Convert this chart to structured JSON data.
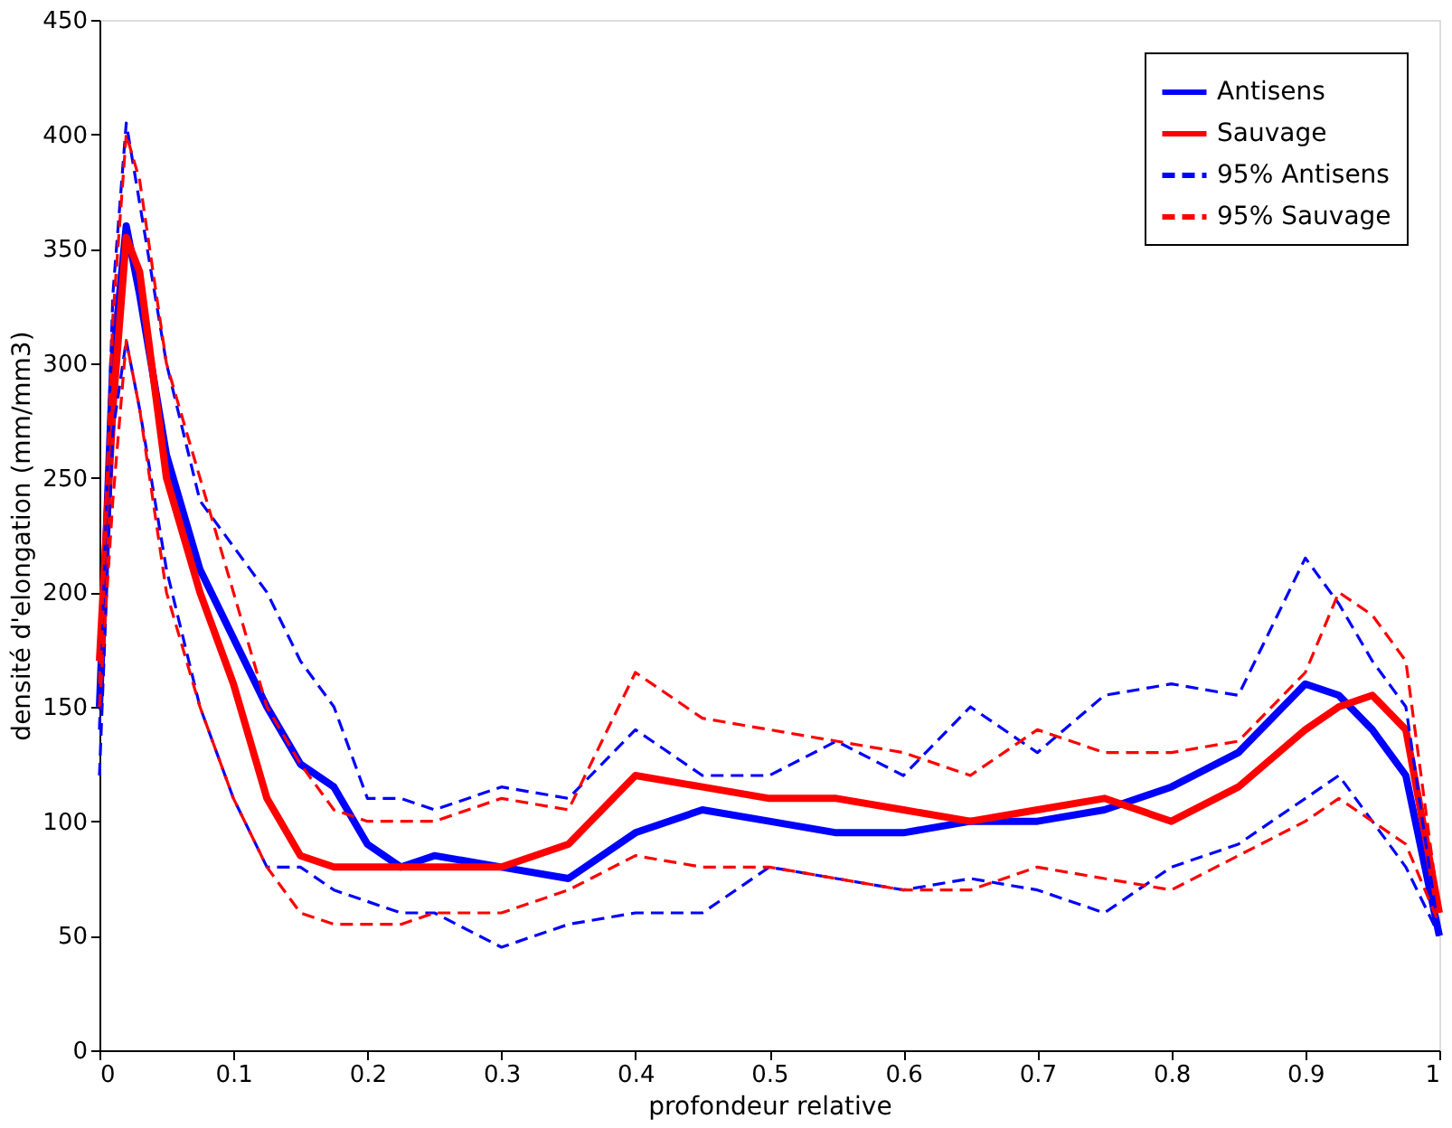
{
  "chart_data": {
    "type": "line",
    "xlabel": "profondeur relative",
    "ylabel": "densité d'elongation (mm/mm3)",
    "x": [
      0,
      0.01,
      0.02,
      0.03,
      0.05,
      0.075,
      0.1,
      0.125,
      0.15,
      0.175,
      0.2,
      0.225,
      0.25,
      0.3,
      0.35,
      0.4,
      0.45,
      0.5,
      0.55,
      0.6,
      0.65,
      0.7,
      0.75,
      0.8,
      0.85,
      0.9,
      0.925,
      0.95,
      0.975,
      1.0
    ],
    "series": [
      {
        "name": "Antisens",
        "color": "#0000ff",
        "line_style": "solid",
        "values": [
          150,
          300,
          360,
          330,
          260,
          210,
          180,
          150,
          125,
          115,
          90,
          80,
          85,
          80,
          75,
          95,
          105,
          100,
          95,
          95,
          100,
          100,
          105,
          115,
          130,
          160,
          155,
          140,
          120,
          50
        ]
      },
      {
        "name": "Sauvage",
        "color": "#ff0000",
        "line_style": "solid",
        "values": [
          170,
          280,
          355,
          340,
          250,
          200,
          160,
          110,
          85,
          80,
          80,
          80,
          80,
          80,
          90,
          120,
          115,
          110,
          110,
          105,
          100,
          105,
          110,
          100,
          115,
          140,
          150,
          155,
          140,
          60
        ]
      },
      {
        "name": "95% Antisens",
        "color": "#0000ff",
        "line_style": "dashed",
        "values": [
          140,
          330,
          405,
          370,
          300,
          240,
          220,
          200,
          170,
          150,
          110,
          110,
          105,
          115,
          110,
          140,
          120,
          120,
          135,
          120,
          150,
          130,
          155,
          160,
          155,
          215,
          195,
          170,
          150,
          50
        ]
      },
      {
        "color": "#0000ff",
        "line_style": "dashed",
        "values": [
          120,
          270,
          310,
          280,
          210,
          150,
          110,
          80,
          80,
          70,
          65,
          60,
          60,
          45,
          55,
          60,
          60,
          80,
          75,
          70,
          75,
          70,
          60,
          80,
          90,
          110,
          120,
          100,
          80,
          50
        ]
      },
      {
        "name": "95% Sauvage",
        "color": "#ff0000",
        "line_style": "dashed",
        "values": [
          160,
          320,
          400,
          380,
          300,
          250,
          200,
          150,
          125,
          105,
          100,
          100,
          100,
          110,
          105,
          165,
          145,
          140,
          135,
          130,
          120,
          140,
          130,
          130,
          135,
          165,
          200,
          190,
          170,
          60
        ]
      },
      {
        "color": "#ff0000",
        "line_style": "dashed",
        "values": [
          150,
          240,
          310,
          280,
          200,
          150,
          110,
          80,
          60,
          55,
          55,
          55,
          60,
          60,
          70,
          85,
          80,
          80,
          75,
          70,
          70,
          80,
          75,
          70,
          85,
          100,
          110,
          100,
          90,
          55
        ]
      }
    ],
    "xlim": [
      0,
      1
    ],
    "xticks": [
      0,
      0.1,
      0.2,
      0.3,
      0.4,
      0.5,
      0.6,
      0.7,
      0.8,
      0.9,
      1
    ],
    "ylim": [
      0,
      450
    ],
    "yticks": [
      0,
      50,
      100,
      150,
      200,
      250,
      300,
      350,
      400,
      450
    ],
    "grid": false,
    "legend": "top right"
  }
}
